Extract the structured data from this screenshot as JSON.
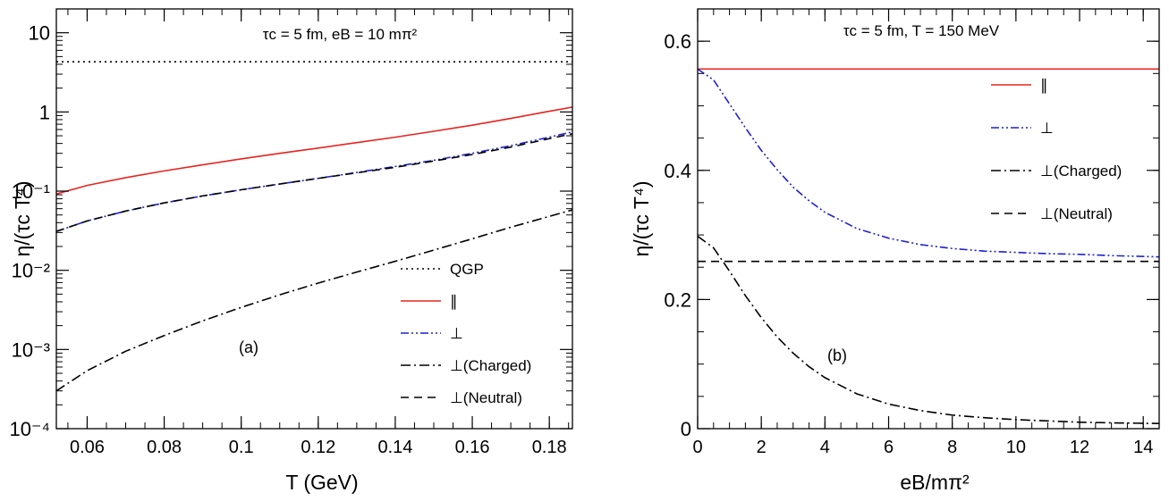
{
  "chart_data": [
    {
      "type": "line",
      "panel_label": "(a)",
      "title": "τc = 5 fm, eB = 10 mπ²",
      "xlabel": "T (GeV)",
      "ylabel": "η/(τc T⁴)",
      "xlim": [
        0.052,
        0.186
      ],
      "ylim": [
        0.0001,
        20
      ],
      "yscale": "log",
      "grid": false,
      "legend_position": "bottom-right",
      "xticks": [
        0.06,
        0.08,
        0.1,
        0.12,
        0.14,
        0.16,
        0.18
      ],
      "xtick_labels": [
        "0.06",
        "0.08",
        "0.1",
        "0.12",
        "0.14",
        "0.16",
        "0.18"
      ],
      "yticks": [
        0.0001,
        0.001,
        0.01,
        0.1,
        1,
        10
      ],
      "ytick_labels": [
        "10⁻⁴",
        "10⁻³",
        "10⁻²",
        "10⁻¹",
        "1",
        "10"
      ],
      "series": [
        {
          "name": "QGP",
          "color": "#000000",
          "dash": "dotted",
          "x": [
            0.052,
            0.186
          ],
          "y": [
            4.3,
            4.3
          ]
        },
        {
          "name": "∥",
          "color": "#e8231f",
          "dash": "solid",
          "x": [
            0.052,
            0.06,
            0.07,
            0.08,
            0.09,
            0.1,
            0.11,
            0.12,
            0.13,
            0.14,
            0.15,
            0.16,
            0.17,
            0.18,
            0.186
          ],
          "y": [
            0.092,
            0.118,
            0.148,
            0.18,
            0.215,
            0.255,
            0.3,
            0.35,
            0.41,
            0.48,
            0.57,
            0.68,
            0.83,
            1.02,
            1.15
          ]
        },
        {
          "name": "⊥",
          "color": "#1f1fd6",
          "dash": "dashdotdot",
          "x": [
            0.052,
            0.06,
            0.07,
            0.08,
            0.09,
            0.1,
            0.11,
            0.12,
            0.13,
            0.14,
            0.15,
            0.16,
            0.17,
            0.18,
            0.186
          ],
          "y": [
            0.031,
            0.042,
            0.056,
            0.071,
            0.087,
            0.104,
            0.123,
            0.145,
            0.172,
            0.205,
            0.245,
            0.3,
            0.375,
            0.48,
            0.56
          ]
        },
        {
          "name": "⊥(Charged)",
          "color": "#000000",
          "dash": "dashdot",
          "x": [
            0.052,
            0.06,
            0.07,
            0.08,
            0.09,
            0.1,
            0.11,
            0.12,
            0.13,
            0.14,
            0.15,
            0.16,
            0.17,
            0.18,
            0.186
          ],
          "y": [
            0.0003,
            0.00054,
            0.00095,
            0.0015,
            0.0023,
            0.0034,
            0.0049,
            0.0069,
            0.0095,
            0.013,
            0.018,
            0.025,
            0.035,
            0.048,
            0.058
          ]
        },
        {
          "name": "⊥(Neutral)",
          "color": "#000000",
          "dash": "dashed",
          "x": [
            0.052,
            0.06,
            0.07,
            0.08,
            0.09,
            0.1,
            0.11,
            0.12,
            0.13,
            0.14,
            0.15,
            0.16,
            0.17,
            0.18,
            0.186
          ],
          "y": [
            0.031,
            0.042,
            0.056,
            0.071,
            0.087,
            0.104,
            0.123,
            0.145,
            0.17,
            0.2,
            0.24,
            0.29,
            0.36,
            0.46,
            0.53
          ]
        }
      ]
    },
    {
      "type": "line",
      "panel_label": "(b)",
      "title": "τc = 5 fm, T = 150 MeV",
      "xlabel": "eB/mπ²",
      "ylabel": "η/(τc T⁴)",
      "xlim": [
        0,
        14.5
      ],
      "ylim": [
        0,
        0.65
      ],
      "yscale": "linear",
      "grid": false,
      "legend_position": "top-right",
      "xticks": [
        0,
        2,
        4,
        6,
        8,
        10,
        12,
        14
      ],
      "xtick_labels": [
        "0",
        "2",
        "4",
        "6",
        "8",
        "10",
        "12",
        "14"
      ],
      "yticks": [
        0,
        0.2,
        0.4,
        0.6
      ],
      "ytick_labels": [
        "0",
        "0.2",
        "0.4",
        "0.6"
      ],
      "series": [
        {
          "name": "∥",
          "color": "#e8231f",
          "dash": "solid",
          "x": [
            0,
            14.5
          ],
          "y": [
            0.557,
            0.557
          ]
        },
        {
          "name": "⊥",
          "color": "#1f1fd6",
          "dash": "dashdotdot",
          "x": [
            0,
            0.5,
            1,
            1.5,
            2,
            2.5,
            3,
            3.5,
            4,
            5,
            6,
            7,
            8,
            9,
            10,
            11,
            12,
            13,
            14.5
          ],
          "y": [
            0.557,
            0.54,
            0.503,
            0.466,
            0.431,
            0.401,
            0.374,
            0.353,
            0.335,
            0.31,
            0.295,
            0.285,
            0.279,
            0.275,
            0.273,
            0.271,
            0.27,
            0.268,
            0.266
          ]
        },
        {
          "name": "⊥(Charged)",
          "color": "#000000",
          "dash": "dashdot",
          "x": [
            0,
            0.5,
            1,
            1.5,
            2,
            2.5,
            3,
            3.5,
            4,
            5,
            6,
            7,
            8,
            9,
            10,
            11,
            12,
            13,
            14.5
          ],
          "y": [
            0.298,
            0.28,
            0.244,
            0.206,
            0.172,
            0.142,
            0.117,
            0.096,
            0.079,
            0.054,
            0.038,
            0.028,
            0.021,
            0.017,
            0.014,
            0.012,
            0.01,
            0.009,
            0.008
          ]
        },
        {
          "name": "⊥(Neutral)",
          "color": "#000000",
          "dash": "dashed",
          "x": [
            0,
            14.5
          ],
          "y": [
            0.259,
            0.259
          ]
        }
      ]
    }
  ]
}
